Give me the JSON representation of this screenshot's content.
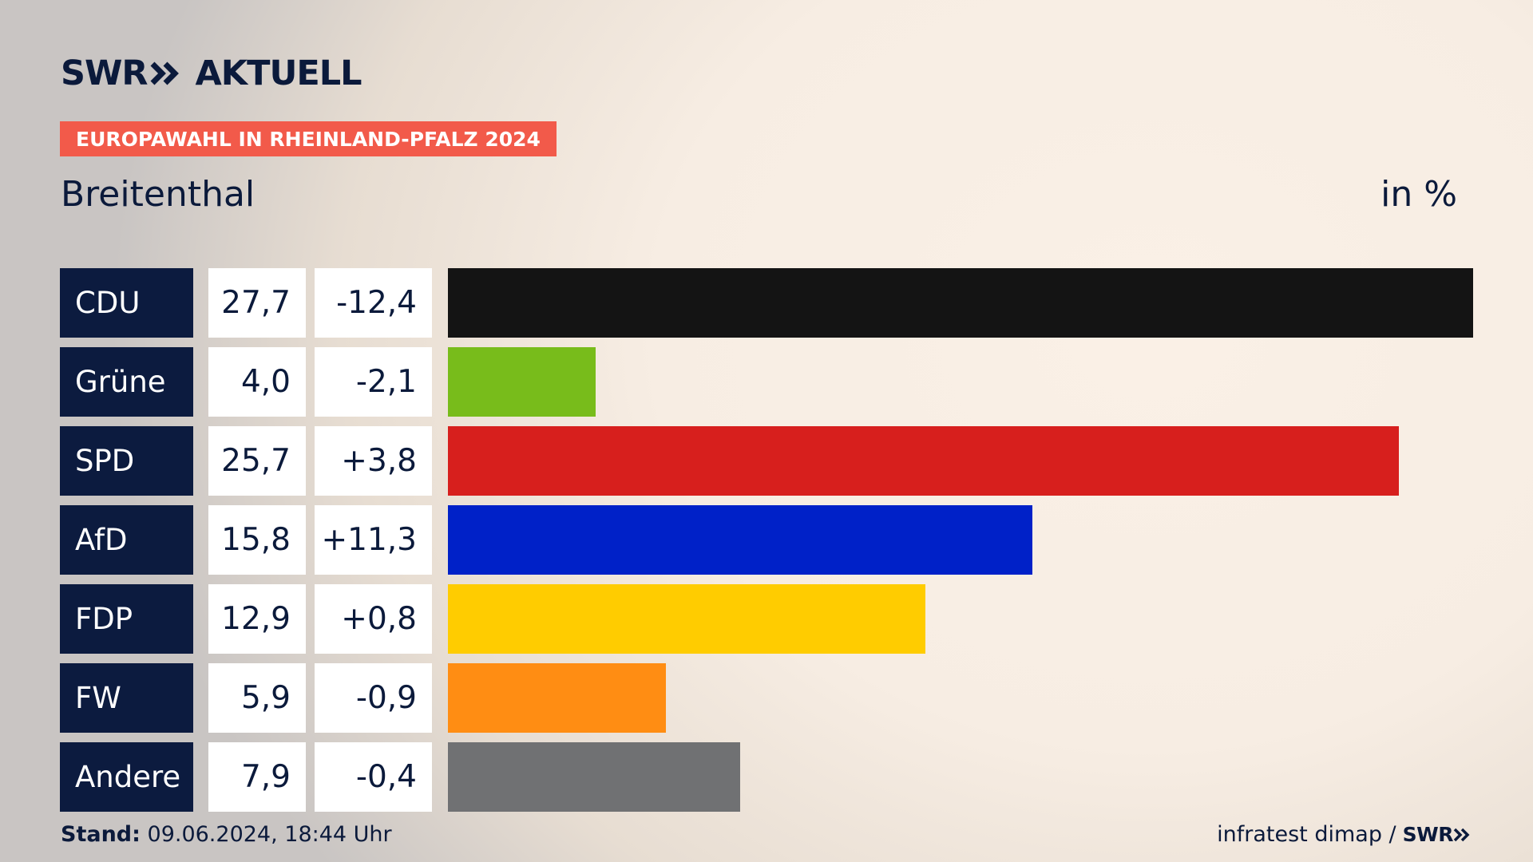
{
  "header": {
    "brand": "SWR",
    "brand_suffix": "AKTUELL",
    "badge": "EUROPAWAHL IN RHEINLAND-PFALZ 2024",
    "location": "Breitenthal",
    "unit": "in %"
  },
  "chart_data": {
    "type": "bar",
    "orientation": "horizontal",
    "categories": [
      "CDU",
      "Grüne",
      "SPD",
      "AfD",
      "FDP",
      "FW",
      "Andere"
    ],
    "values": [
      27.7,
      4.0,
      25.7,
      15.8,
      12.9,
      5.9,
      7.9
    ],
    "value_labels": [
      "27,7",
      "4,0",
      "25,7",
      "15,8",
      "12,9",
      "5,9",
      "7,9"
    ],
    "change_labels": [
      "-12,4",
      "-2,1",
      "+3,8",
      "+11,3",
      "+0,8",
      "-0,9",
      "-0,4"
    ],
    "colors": [
      "#141414",
      "#78bc1b",
      "#d71f1d",
      "#0021c8",
      "#ffcc00",
      "#ff8d13",
      "#707173"
    ],
    "xlim": [
      0,
      27.7
    ],
    "grid": false,
    "legend": "none"
  },
  "footer": {
    "stand_label": "Stand:",
    "stand_value": "09.06.2024, 18:44 Uhr",
    "source": "infratest dimap /",
    "source_logo": "SWR"
  }
}
